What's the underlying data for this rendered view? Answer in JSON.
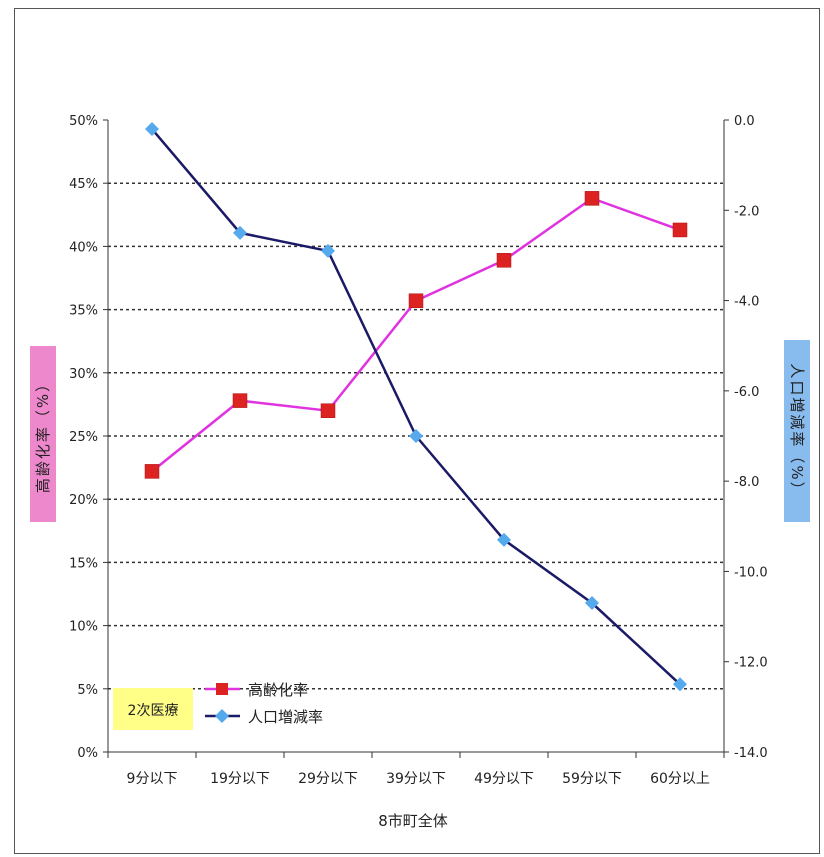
{
  "chart_data": {
    "type": "line",
    "categories": [
      "9分以下",
      "19分以下",
      "29分以下",
      "39分以下",
      "49分以下",
      "59分以下",
      "60分以上"
    ],
    "xlabel": "8市町全体",
    "ylabel_left": "高齢化率（%）",
    "ylabel_right": "人口増減率（%）",
    "ylim_left": [
      0,
      50
    ],
    "ylim_right": [
      -14,
      0
    ],
    "yticks_left": [
      "50%",
      "45%",
      "40%",
      "35%",
      "30%",
      "25%",
      "20%",
      "15%",
      "10%",
      "5%",
      "0%"
    ],
    "yticks_right": [
      "0.0",
      "-2.0",
      "-4.0",
      "-6.0",
      "-8.0",
      "-10.0",
      "-12.0",
      "-14.0"
    ],
    "grid": "horizontal dotted",
    "legend_placement": "bottom-left",
    "note": "2次医療",
    "series": [
      {
        "name": "高齢化率",
        "axis": "left",
        "marker": "square",
        "color": "#e033e0",
        "marker_color": "#dd2222",
        "values": [
          22.2,
          27.8,
          27.0,
          35.7,
          38.9,
          43.8,
          41.3
        ]
      },
      {
        "name": "人口増減率",
        "axis": "right",
        "marker": "diamond",
        "color": "#1a1a66",
        "marker_color": "#55aaee",
        "values": [
          -0.2,
          -2.5,
          -2.9,
          -7.0,
          -9.3,
          -10.7,
          -12.5
        ]
      }
    ],
    "colors": {
      "left_label_bg": "#ee88cc",
      "right_label_bg": "#88bbee",
      "note_bg": "#ffff88"
    }
  }
}
